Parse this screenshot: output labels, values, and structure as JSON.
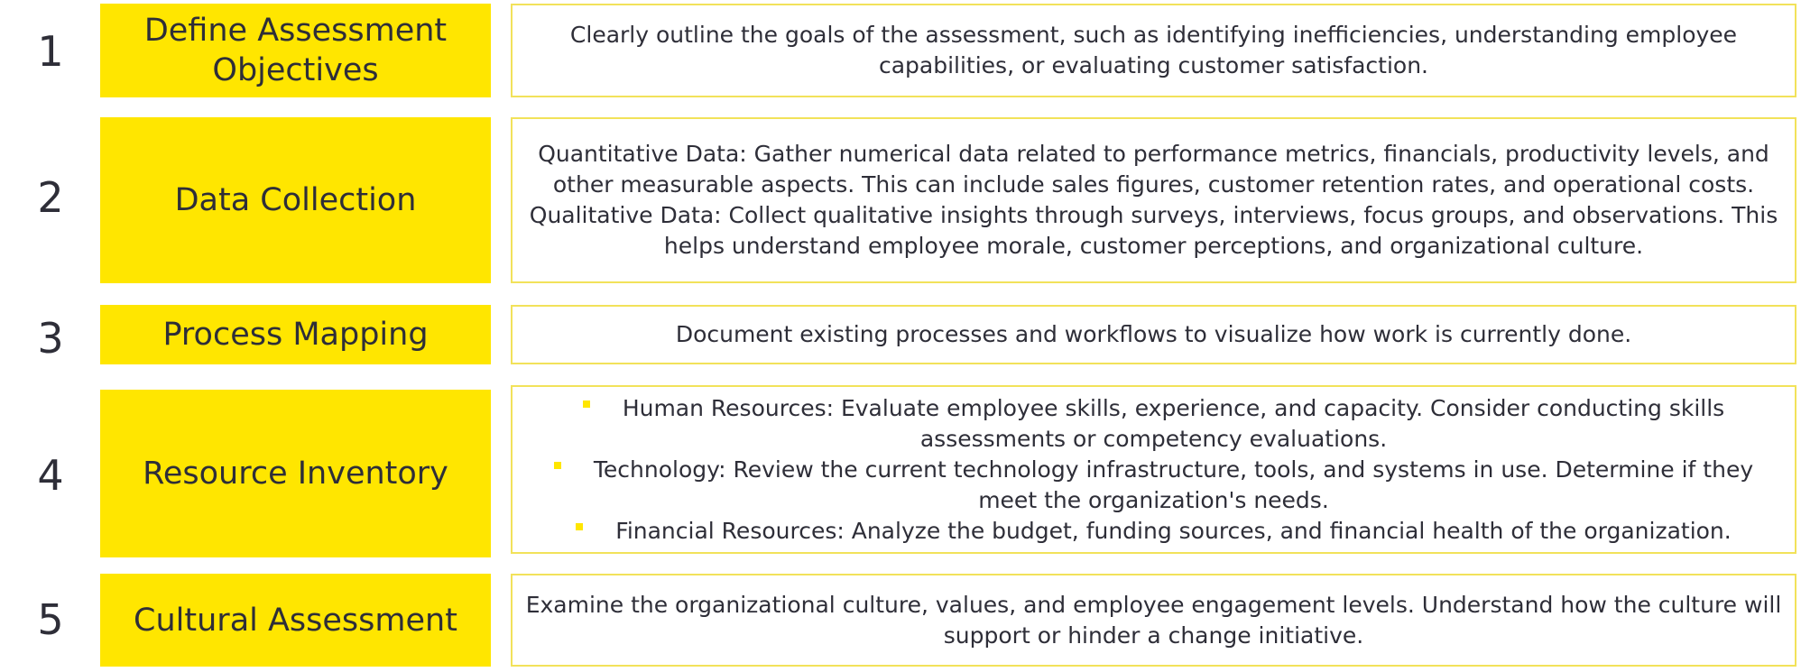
{
  "steps": [
    {
      "number": "1",
      "title": "Define Assessment Objectives",
      "description": "Clearly outline the goals of the assessment, such as identifying inefficiencies, understanding employee capabilities, or evaluating customer satisfaction."
    },
    {
      "number": "2",
      "title": "Data Collection",
      "paragraphs": [
        "Quantitative Data: Gather numerical data related to performance metrics, financials, productivity levels, and other measurable aspects. This can include sales figures, customer retention rates, and operational costs.",
        "Qualitative Data: Collect qualitative insights through surveys, interviews, focus groups, and observations. This helps understand employee morale, customer perceptions, and organizational culture."
      ]
    },
    {
      "number": "3",
      "title": "Process Mapping",
      "description": "Document existing processes and workflows to visualize how work is currently done."
    },
    {
      "number": "4",
      "title": "Resource Inventory",
      "bullets": [
        "Human Resources: Evaluate employee skills, experience, and capacity. Consider conducting skills assessments or competency evaluations.",
        "Technology: Review the current technology infrastructure, tools, and systems in use. Determine if they meet the organization's needs.",
        "Financial Resources: Analyze the budget, funding sources, and financial health of the organization."
      ]
    },
    {
      "number": "5",
      "title": "Cultural Assessment",
      "description": "Examine the organizational culture, values, and employee engagement levels. Understand how the culture will support or hinder a change initiative."
    }
  ],
  "colors": {
    "accent_yellow": "#ffe600",
    "border_yellow": "#f2e25a",
    "text_dark": "#2e2e38",
    "background": "#ffffff"
  }
}
